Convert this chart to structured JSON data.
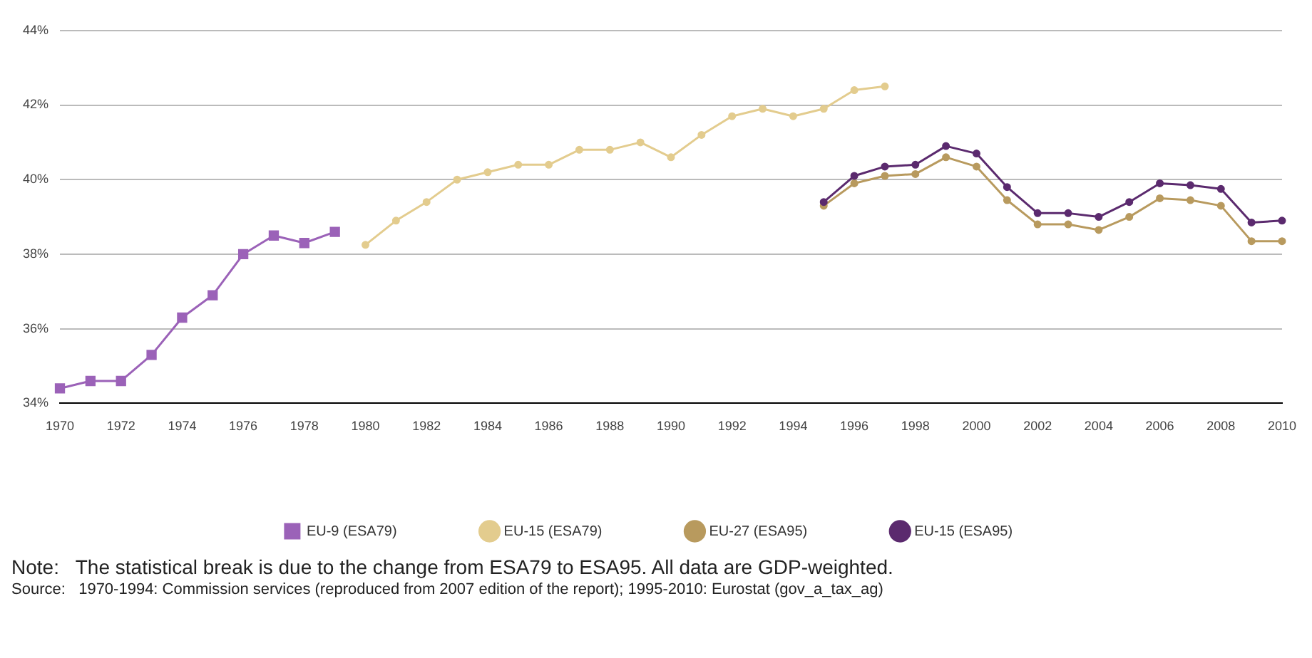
{
  "chart_data": {
    "type": "line",
    "categories": [
      "1970",
      null,
      "1972",
      null,
      "1974",
      null,
      "1976",
      null,
      "1978",
      null,
      "1980",
      null,
      "1982",
      null,
      "1984",
      null,
      "1986",
      null,
      "1988",
      null,
      "1990",
      null,
      "1992",
      null,
      "1994",
      null,
      "1996",
      null,
      "1998",
      null,
      "2000",
      null,
      "2002",
      null,
      "2004",
      null,
      "2006",
      null,
      "2008",
      null,
      "2010"
    ],
    "series": [
      {
        "name": "EU-9 (ESA79)",
        "color": "#9b62b8",
        "marker": "square",
        "values": [
          34.4,
          34.6,
          34.6,
          35.3,
          36.3,
          36.9,
          38.0,
          38.5,
          38.3,
          38.6,
          null,
          null,
          null,
          null,
          null,
          null,
          null,
          null,
          null,
          null,
          null,
          null,
          null,
          null,
          null,
          null,
          null,
          null,
          null,
          null,
          null,
          null,
          null,
          null,
          null,
          null,
          null,
          null,
          null,
          null,
          null
        ]
      },
      {
        "name": "EU-15 (ESA79)",
        "color": "#e3cc8e",
        "marker": "circle",
        "values": [
          null,
          null,
          null,
          null,
          null,
          null,
          null,
          null,
          null,
          null,
          38.25,
          38.9,
          39.4,
          40.0,
          40.2,
          40.4,
          40.4,
          40.8,
          40.8,
          41.0,
          40.6,
          41.2,
          41.7,
          41.9,
          41.7,
          41.9,
          42.4,
          42.5,
          null,
          null,
          null,
          null,
          null,
          null,
          null,
          null,
          null,
          null,
          null,
          null,
          null
        ]
      },
      {
        "name": "EU-27 (ESA95)",
        "color": "#b89a5e",
        "marker": "circle",
        "values": [
          null,
          null,
          null,
          null,
          null,
          null,
          null,
          null,
          null,
          null,
          null,
          null,
          null,
          null,
          null,
          null,
          null,
          null,
          null,
          null,
          null,
          null,
          null,
          null,
          null,
          39.3,
          39.9,
          40.1,
          40.15,
          40.6,
          40.35,
          39.45,
          38.8,
          38.8,
          38.65,
          39.0,
          39.5,
          39.45,
          39.3,
          38.35,
          38.35
        ]
      },
      {
        "name": "EU-15 (ESA95)",
        "color": "#5b2a6e",
        "marker": "circle",
        "values": [
          null,
          null,
          null,
          null,
          null,
          null,
          null,
          null,
          null,
          null,
          null,
          null,
          null,
          null,
          null,
          null,
          null,
          null,
          null,
          null,
          null,
          null,
          null,
          null,
          null,
          39.4,
          40.1,
          40.35,
          40.4,
          40.9,
          40.7,
          39.8,
          39.1,
          39.1,
          39.0,
          39.4,
          39.9,
          39.85,
          39.75,
          38.85,
          38.9
        ]
      }
    ],
    "ylim": [
      34,
      44
    ],
    "yticks": [
      {
        "value": 34,
        "label": "34%"
      },
      {
        "value": 36,
        "label": "36%"
      },
      {
        "value": 38,
        "label": "38%"
      },
      {
        "value": 40,
        "label": "40%"
      },
      {
        "value": 42,
        "label": "42%"
      },
      {
        "value": 44,
        "label": "44%"
      }
    ],
    "grid": "y",
    "legend": "bottom",
    "line_style": "solid",
    "annotations": [
      "Note:   The statistical break is due to the change from ESA79 to ESA95. All data are GDP-weighted.",
      "Source:   1970-1994: Commission services (reproduced from 2007 edition of the report); 1995-2010: Eurostat (gov_a_tax_ag)"
    ]
  }
}
